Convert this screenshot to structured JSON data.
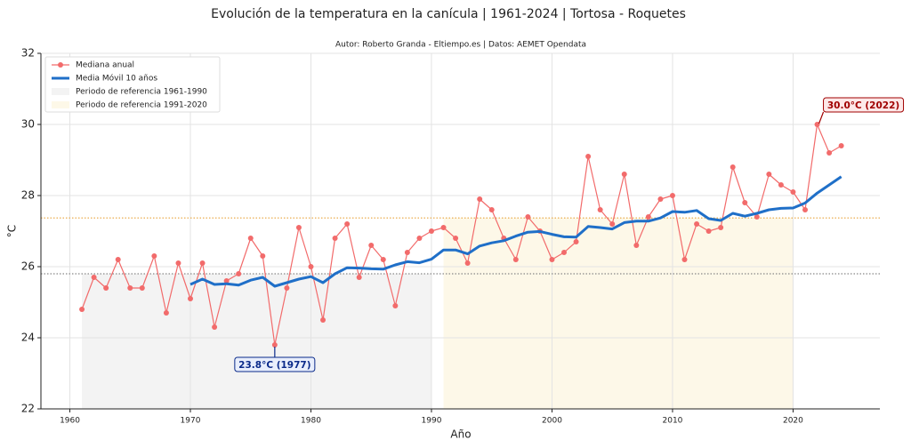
{
  "chart_data": {
    "type": "line",
    "title": "Evolución de la temperatura en la canícula | 1961-2024 | Tortosa - Roquetes",
    "subtitle": "Autor: Roberto Granda - Eltiempo.es | Datos: AEMET Opendata",
    "x_label": "Año",
    "y_label": "°C",
    "x": [
      1961,
      1962,
      1963,
      1964,
      1965,
      1966,
      1967,
      1968,
      1969,
      1970,
      1971,
      1972,
      1973,
      1974,
      1975,
      1976,
      1977,
      1978,
      1979,
      1980,
      1981,
      1982,
      1983,
      1984,
      1985,
      1986,
      1987,
      1988,
      1989,
      1990,
      1991,
      1992,
      1993,
      1994,
      1995,
      1996,
      1997,
      1998,
      1999,
      2000,
      2001,
      2002,
      2003,
      2004,
      2005,
      2006,
      2007,
      2008,
      2009,
      2010,
      2011,
      2012,
      2013,
      2014,
      2015,
      2016,
      2017,
      2018,
      2019,
      2020,
      2021,
      2022,
      2023,
      2024
    ],
    "series": [
      {
        "name": "Mediana anual",
        "color": "#f26b6b",
        "markers": true,
        "width": 1.2,
        "values": [
          24.8,
          25.7,
          25.4,
          26.2,
          25.4,
          25.4,
          26.3,
          24.7,
          26.1,
          25.1,
          26.1,
          24.3,
          25.6,
          25.8,
          26.8,
          26.3,
          23.8,
          25.4,
          27.1,
          26.0,
          24.5,
          26.8,
          27.2,
          25.7,
          26.6,
          26.2,
          24.9,
          26.4,
          26.8,
          27.0,
          27.1,
          26.8,
          26.1,
          27.9,
          27.6,
          26.8,
          26.2,
          27.4,
          27.0,
          26.2,
          26.4,
          26.7,
          29.1,
          27.6,
          27.2,
          28.6,
          26.6,
          27.4,
          27.9,
          28.0,
          26.2,
          27.2,
          27.0,
          27.1,
          28.8,
          27.8,
          27.4,
          28.6,
          28.3,
          28.1,
          27.6,
          30.0,
          29.2,
          29.4
        ]
      },
      {
        "name": "Media Móvil 10 años",
        "color": "#1f6fc8",
        "markers": false,
        "width": 3,
        "values": [
          null,
          null,
          null,
          null,
          null,
          null,
          null,
          null,
          null,
          25.5,
          25.65,
          25.5,
          25.52,
          25.48,
          25.62,
          25.7,
          25.45,
          25.55,
          25.65,
          25.72,
          25.55,
          25.8,
          25.97,
          25.96,
          25.94,
          25.93,
          26.05,
          26.14,
          26.11,
          26.21,
          26.47,
          26.47,
          26.36,
          26.58,
          26.67,
          26.73,
          26.86,
          26.97,
          26.99,
          26.91,
          26.84,
          26.83,
          27.13,
          27.1,
          27.06,
          27.24,
          27.28,
          27.28,
          27.37,
          27.55,
          27.53,
          27.58,
          27.35,
          27.3,
          27.5,
          27.42,
          27.5,
          27.6,
          27.64,
          27.65,
          27.79,
          28.07,
          28.3,
          28.53
        ]
      }
    ],
    "reference_periods": [
      {
        "name": "Periodo de referencia 1961-1990",
        "start": 1961,
        "end": 1990,
        "value": 25.8,
        "fill": "#f3f3f3",
        "line_color": "#888888"
      },
      {
        "name": "Periodo de referencia 1991-2020",
        "start": 1991,
        "end": 2020,
        "value": 27.37,
        "fill": "#fdf8e8",
        "line_color": "#e8a33a"
      }
    ],
    "annotations": [
      {
        "text": "30.0°C (2022)",
        "x": 2022,
        "y": 30.0,
        "color": "#a00000",
        "bg": "#fde8e8",
        "dx": 52,
        "dy": -22
      },
      {
        "text": "23.8°C (1977)",
        "x": 1977,
        "y": 23.8,
        "color": "#0a2a8a",
        "bg": "#e8eefc",
        "dx": 0,
        "dy": 22
      }
    ],
    "xlim": [
      1957.6,
      2027.2
    ],
    "ylim": [
      22,
      32
    ],
    "xticks": [
      1960,
      1970,
      1980,
      1990,
      2000,
      2010,
      2020
    ],
    "yticks": [
      22,
      24,
      26,
      28,
      30,
      32
    ],
    "grid": true,
    "legend": "upper left"
  }
}
